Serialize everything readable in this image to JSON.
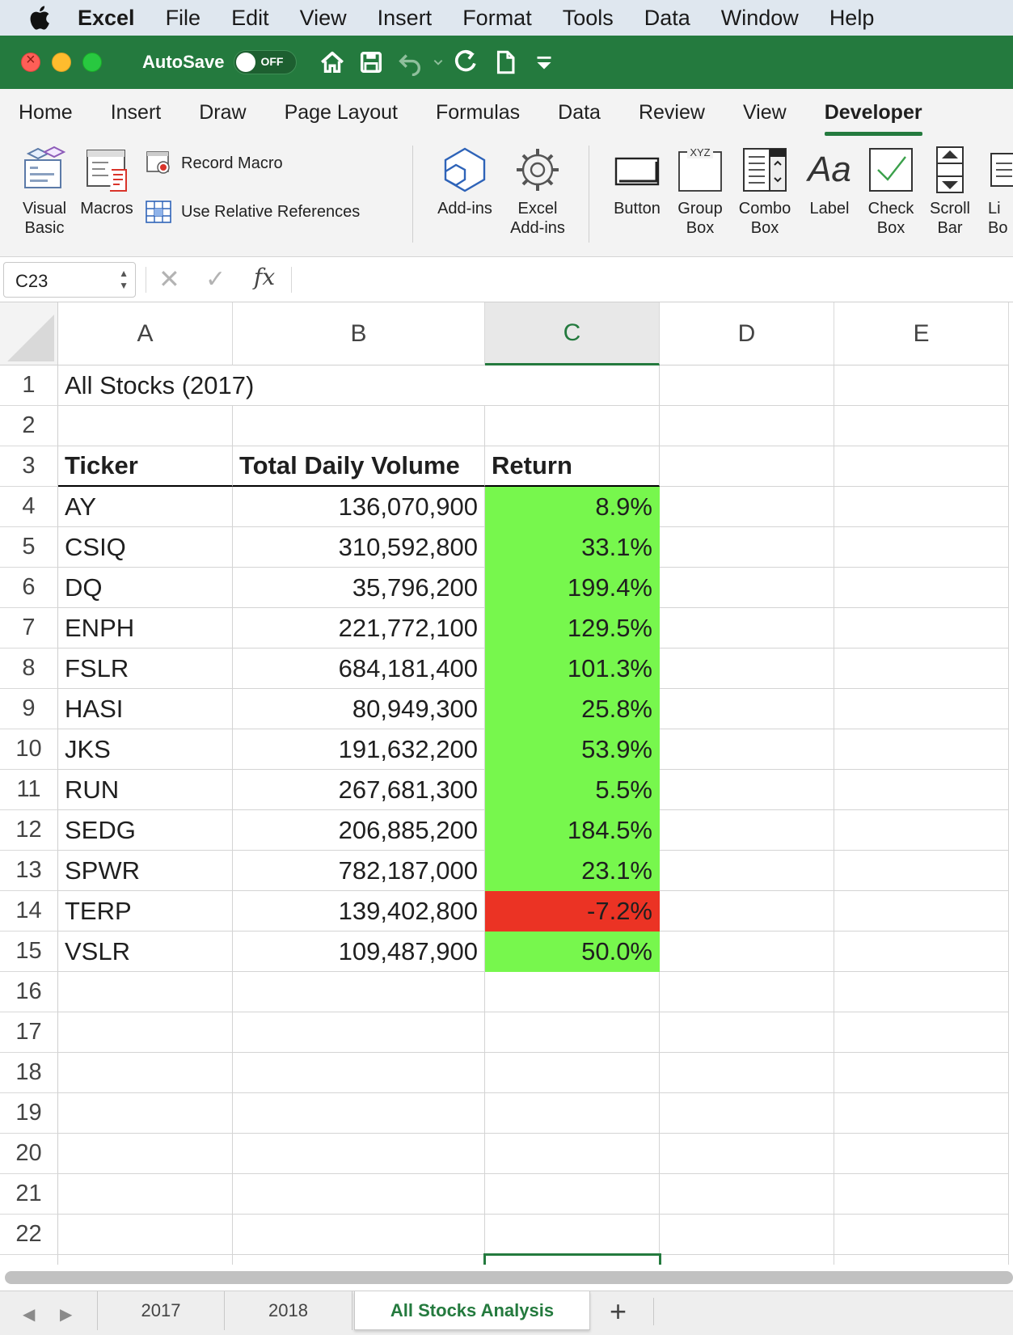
{
  "menubar": {
    "app": "Excel",
    "items": [
      "File",
      "Edit",
      "View",
      "Insert",
      "Format",
      "Tools",
      "Data",
      "Window",
      "Help"
    ]
  },
  "titlebar": {
    "autosave_label": "AutoSave",
    "autosave_state": "OFF"
  },
  "ribbon_tabs": [
    "Home",
    "Insert",
    "Draw",
    "Page Layout",
    "Formulas",
    "Data",
    "Review",
    "View",
    "Developer"
  ],
  "ribbon": {
    "visual_basic": "Visual\nBasic",
    "macros": "Macros",
    "record_macro": "Record Macro",
    "use_relative_references": "Use Relative References",
    "add_ins": "Add-ins",
    "excel_add_ins": "Excel\nAdd-ins",
    "button": "Button",
    "group_box": "Group\nBox",
    "combo_box": "Combo\nBox",
    "label": "Label",
    "check_box": "Check\nBox",
    "scroll_bar": "Scroll\nBar",
    "list_box_partial": "Li\nBo"
  },
  "formula_bar": {
    "name_box": "C23",
    "fx": "fx",
    "formula": ""
  },
  "columns": [
    "A",
    "B",
    "C",
    "D",
    "E"
  ],
  "selected_column": "C",
  "selected_cell": "C23",
  "rows": [
    "1",
    "2",
    "3",
    "4",
    "5",
    "6",
    "7",
    "8",
    "9",
    "10",
    "11",
    "12",
    "13",
    "14",
    "15",
    "16",
    "17",
    "18",
    "19",
    "20",
    "21",
    "22"
  ],
  "sheet": {
    "title": "All Stocks (2017)",
    "headers": {
      "ticker": "Ticker",
      "volume": "Total Daily Volume",
      "return": "Return"
    },
    "data": [
      {
        "ticker": "AY",
        "volume": "136,070,900",
        "return": "8.9%",
        "status": "positive"
      },
      {
        "ticker": "CSIQ",
        "volume": "310,592,800",
        "return": "33.1%",
        "status": "positive"
      },
      {
        "ticker": "DQ",
        "volume": "35,796,200",
        "return": "199.4%",
        "status": "positive"
      },
      {
        "ticker": "ENPH",
        "volume": "221,772,100",
        "return": "129.5%",
        "status": "positive"
      },
      {
        "ticker": "FSLR",
        "volume": "684,181,400",
        "return": "101.3%",
        "status": "positive"
      },
      {
        "ticker": "HASI",
        "volume": "80,949,300",
        "return": "25.8%",
        "status": "positive"
      },
      {
        "ticker": "JKS",
        "volume": "191,632,200",
        "return": "53.9%",
        "status": "positive"
      },
      {
        "ticker": "RUN",
        "volume": "267,681,300",
        "return": "5.5%",
        "status": "positive"
      },
      {
        "ticker": "SEDG",
        "volume": "206,885,200",
        "return": "184.5%",
        "status": "positive"
      },
      {
        "ticker": "SPWR",
        "volume": "782,187,000",
        "return": "23.1%",
        "status": "positive"
      },
      {
        "ticker": "TERP",
        "volume": "139,402,800",
        "return": "-7.2%",
        "status": "negative"
      },
      {
        "ticker": "VSLR",
        "volume": "109,487,900",
        "return": "50.0%",
        "status": "positive"
      }
    ]
  },
  "colors": {
    "accent": "#247a3e",
    "positive": "#77f74d",
    "negative": "#eb3324"
  },
  "sheet_tabs": [
    {
      "label": "2017",
      "active": false
    },
    {
      "label": "2018",
      "active": false
    },
    {
      "label": "All Stocks Analysis",
      "active": true
    }
  ],
  "add_sheet": "+"
}
